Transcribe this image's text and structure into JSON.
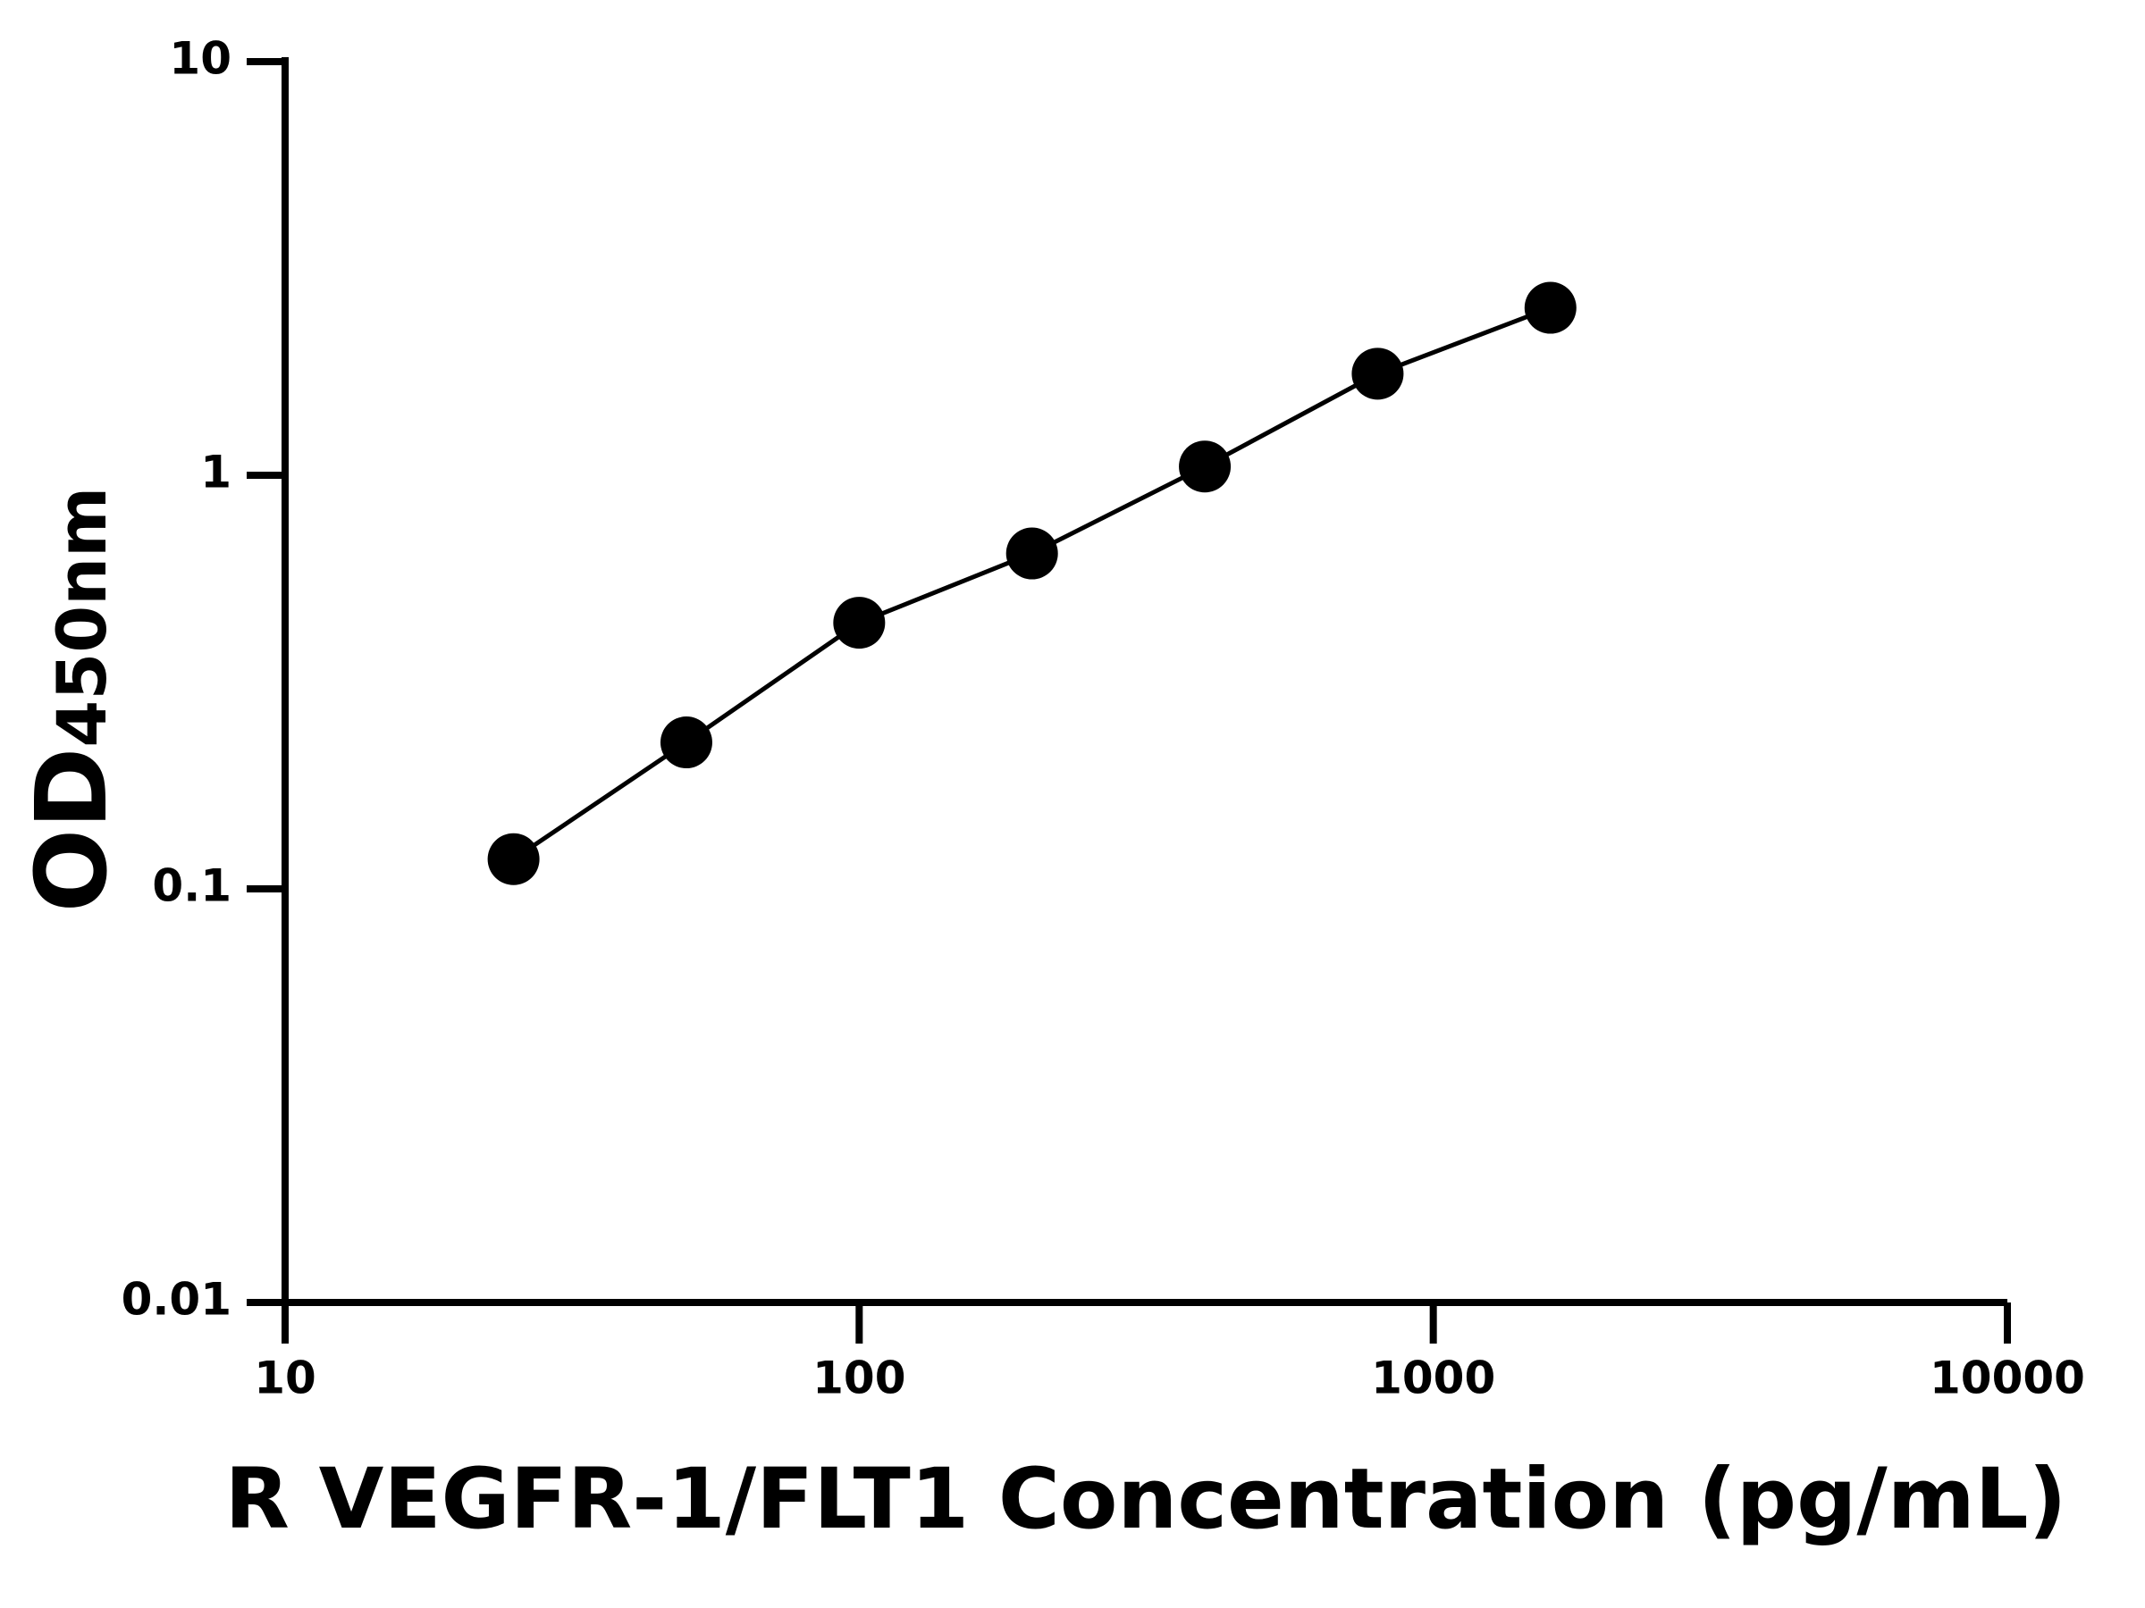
{
  "chart_data": {
    "type": "line",
    "x_label": "R VEGFR-1/FLT1 Concentration (pg/mL)",
    "y_label": {
      "main": "OD",
      "sub": "450nm"
    },
    "x": [
      25,
      50,
      100,
      200,
      400,
      800,
      1600
    ],
    "series": [
      {
        "color": "#000000",
        "values": [
          0.118,
          0.226,
          0.44,
          0.647,
          1.05,
          1.76,
          2.54
        ]
      }
    ],
    "x_log": true,
    "y_log": true,
    "xlim": [
      10,
      10000
    ],
    "xticks": [
      10,
      100,
      1000,
      10000
    ],
    "ylim": [
      0.01,
      10
    ],
    "yticks": [
      0.01,
      0.1,
      1,
      10
    ],
    "grid": false
  }
}
